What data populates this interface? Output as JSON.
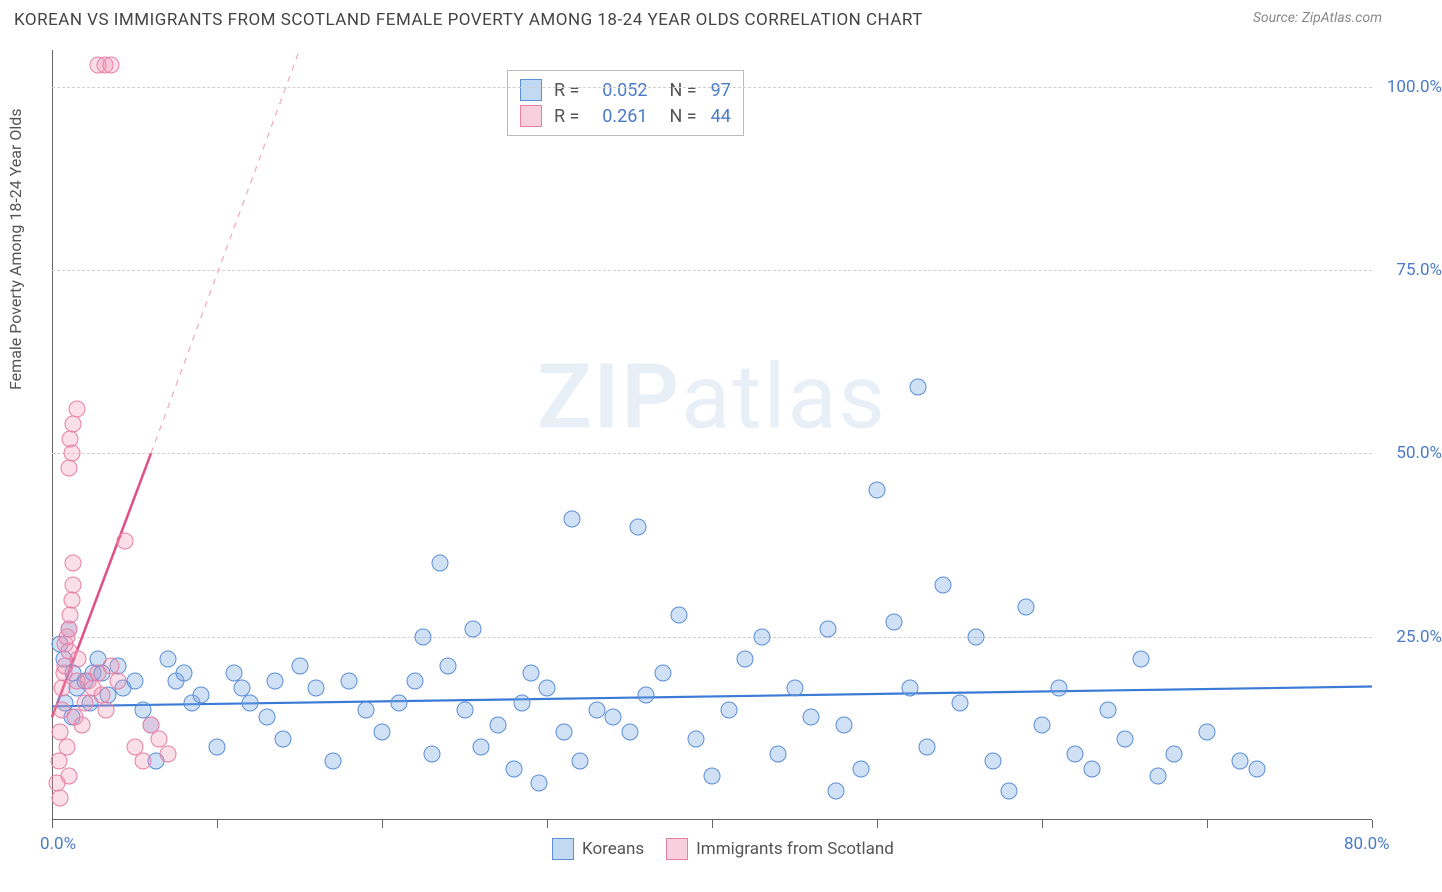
{
  "title": "KOREAN VS IMMIGRANTS FROM SCOTLAND FEMALE POVERTY AMONG 18-24 YEAR OLDS CORRELATION CHART",
  "source": "Source: ZipAtlas.com",
  "ylabel": "Female Poverty Among 18-24 Year Olds",
  "watermark_bold": "ZIP",
  "watermark_rest": "atlas",
  "chart": {
    "type": "scatter",
    "xlim": [
      0,
      80
    ],
    "ylim": [
      0,
      105
    ],
    "ytick_values": [
      25,
      50,
      75,
      100
    ],
    "ytick_labels": [
      "25.0%",
      "50.0%",
      "75.0%",
      "100.0%"
    ],
    "xtick_values": [
      0,
      10,
      20,
      30,
      40,
      50,
      60,
      70,
      80
    ],
    "x_axis_label_left": "0.0%",
    "x_axis_label_right": "80.0%",
    "grid_color": "#d0d0d0",
    "background_color": "#ffffff",
    "marker_size": 17,
    "series": [
      {
        "name": "Koreans",
        "color_fill": "rgba(120,170,230,0.35)",
        "color_stroke": "#5b8fd6",
        "class": "blue",
        "r": 0.052,
        "n": 97,
        "trend": {
          "x1": 0,
          "y1": 15.5,
          "x2": 80,
          "y2": 18.2,
          "stroke": "#3b7bd6",
          "width": 2.2,
          "dash": "none"
        },
        "points": [
          [
            0.5,
            24
          ],
          [
            0.7,
            22
          ],
          [
            1,
            26
          ],
          [
            1.3,
            20
          ],
          [
            1.5,
            18
          ],
          [
            0.8,
            16
          ],
          [
            1.2,
            14
          ],
          [
            2,
            19
          ],
          [
            2.3,
            16
          ],
          [
            2.5,
            20
          ],
          [
            2.8,
            22
          ],
          [
            3,
            20
          ],
          [
            3.4,
            17
          ],
          [
            4,
            21
          ],
          [
            4.3,
            18
          ],
          [
            5,
            19
          ],
          [
            5.5,
            15
          ],
          [
            6,
            13
          ],
          [
            6.3,
            8
          ],
          [
            7,
            22
          ],
          [
            7.5,
            19
          ],
          [
            8,
            20
          ],
          [
            8.5,
            16
          ],
          [
            9,
            17
          ],
          [
            10,
            10
          ],
          [
            11,
            20
          ],
          [
            11.5,
            18
          ],
          [
            12,
            16
          ],
          [
            13,
            14
          ],
          [
            13.5,
            19
          ],
          [
            14,
            11
          ],
          [
            15,
            21
          ],
          [
            16,
            18
          ],
          [
            17,
            8
          ],
          [
            18,
            19
          ],
          [
            19,
            15
          ],
          [
            20,
            12
          ],
          [
            21,
            16
          ],
          [
            22,
            19
          ],
          [
            22.5,
            25
          ],
          [
            23,
            9
          ],
          [
            23.5,
            35
          ],
          [
            24,
            21
          ],
          [
            25,
            15
          ],
          [
            25.5,
            26
          ],
          [
            26,
            10
          ],
          [
            27,
            13
          ],
          [
            28,
            7
          ],
          [
            28.5,
            16
          ],
          [
            29,
            20
          ],
          [
            29.5,
            5
          ],
          [
            30,
            18
          ],
          [
            31,
            12
          ],
          [
            31.5,
            41
          ],
          [
            32,
            8
          ],
          [
            33,
            15
          ],
          [
            34,
            14
          ],
          [
            35,
            12
          ],
          [
            35.5,
            40
          ],
          [
            36,
            17
          ],
          [
            37,
            20
          ],
          [
            38,
            28
          ],
          [
            39,
            11
          ],
          [
            40,
            6
          ],
          [
            41,
            15
          ],
          [
            42,
            22
          ],
          [
            43,
            25
          ],
          [
            44,
            9
          ],
          [
            45,
            18
          ],
          [
            46,
            14
          ],
          [
            47,
            26
          ],
          [
            47.5,
            4
          ],
          [
            48,
            13
          ],
          [
            49,
            7
          ],
          [
            50,
            45
          ],
          [
            51,
            27
          ],
          [
            52,
            18
          ],
          [
            52.5,
            59
          ],
          [
            53,
            10
          ],
          [
            54,
            32
          ],
          [
            55,
            16
          ],
          [
            56,
            25
          ],
          [
            57,
            8
          ],
          [
            58,
            4
          ],
          [
            59,
            29
          ],
          [
            60,
            13
          ],
          [
            61,
            18
          ],
          [
            62,
            9
          ],
          [
            63,
            7
          ],
          [
            64,
            15
          ],
          [
            65,
            11
          ],
          [
            66,
            22
          ],
          [
            67,
            6
          ],
          [
            68,
            9
          ],
          [
            70,
            12
          ],
          [
            72,
            8
          ],
          [
            73,
            7
          ]
        ]
      },
      {
        "name": "Immigrants from Scotland",
        "color_fill": "rgba(240,150,180,0.30)",
        "color_stroke": "#e87fa5",
        "class": "pink",
        "r": 0.261,
        "n": 44,
        "trend_solid": {
          "x1": 0,
          "y1": 14,
          "x2": 6,
          "y2": 50,
          "stroke": "#e04f85",
          "width": 2.5
        },
        "trend_dash": {
          "x1": 6,
          "y1": 50,
          "x2": 15,
          "y2": 105,
          "stroke": "#f0a8c0",
          "width": 1.2
        },
        "points": [
          [
            0.3,
            5
          ],
          [
            0.4,
            8
          ],
          [
            0.5,
            12
          ],
          [
            0.6,
            15
          ],
          [
            0.6,
            18
          ],
          [
            0.7,
            20
          ],
          [
            0.8,
            21
          ],
          [
            0.8,
            24
          ],
          [
            0.9,
            25
          ],
          [
            1.0,
            23
          ],
          [
            1.0,
            26
          ],
          [
            1.1,
            28
          ],
          [
            1.2,
            30
          ],
          [
            1.3,
            32
          ],
          [
            1.3,
            35
          ],
          [
            1.4,
            14
          ],
          [
            1.5,
            19
          ],
          [
            1.6,
            22
          ],
          [
            1.0,
            48
          ],
          [
            1.2,
            50
          ],
          [
            1.1,
            52
          ],
          [
            1.3,
            54
          ],
          [
            1.5,
            56
          ],
          [
            0.9,
            10
          ],
          [
            1.8,
            13
          ],
          [
            2.0,
            16
          ],
          [
            2.2,
            19
          ],
          [
            2.5,
            18
          ],
          [
            2.8,
            20
          ],
          [
            3.0,
            17
          ],
          [
            3.3,
            15
          ],
          [
            3.6,
            21
          ],
          [
            4.0,
            19
          ],
          [
            4.4,
            38
          ],
          [
            5.0,
            10
          ],
          [
            5.5,
            8
          ],
          [
            6.0,
            13
          ],
          [
            6.5,
            11
          ],
          [
            7.0,
            9
          ],
          [
            2.8,
            103
          ],
          [
            3.2,
            103
          ],
          [
            3.6,
            103
          ],
          [
            1.0,
            6
          ],
          [
            0.5,
            3
          ]
        ]
      }
    ],
    "stat_legend": {
      "r_label": "R",
      "n_label": "N",
      "eq": "="
    },
    "bottom_legend": [
      {
        "class": "blue",
        "label": "Koreans"
      },
      {
        "class": "pink",
        "label": "Immigrants from Scotland"
      }
    ]
  }
}
